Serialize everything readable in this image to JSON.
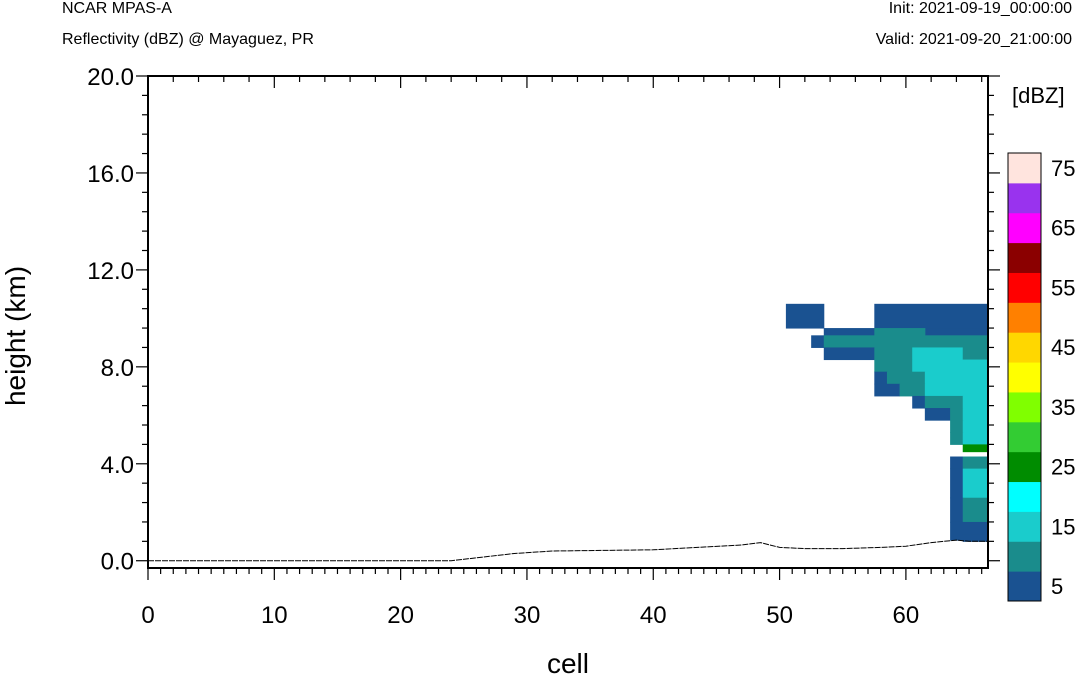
{
  "header": {
    "title": "NCAR MPAS-A",
    "subtitle": "Reflectivity (dBZ) @ Mayaguez, PR",
    "init": "Init: 2021-09-19_00:00:00",
    "valid": "Valid: 2021-09-20_21:00:00"
  },
  "chart_data": {
    "type": "heatmap",
    "xlabel": "cell",
    "ylabel": "height (km)",
    "xlim": [
      0,
      66.5
    ],
    "ylim": [
      -0.3,
      20.0
    ],
    "x_ticks": [
      "0",
      "10",
      "20",
      "30",
      "40",
      "50",
      "60"
    ],
    "y_ticks": [
      "0.0",
      "4.0",
      "8.0",
      "12.0",
      "16.0",
      "20.0"
    ],
    "colorbar": {
      "unit": "[dBZ]",
      "labels": [
        "5",
        "15",
        "25",
        "35",
        "45",
        "55",
        "65",
        "75"
      ],
      "colors": [
        "#1a5291",
        "#1a8c8c",
        "#1acccc",
        "#00ffff",
        "#008c00",
        "#33cc33",
        "#80ff00",
        "#ffff00",
        "#ffd700",
        "#ff8000",
        "#ff0000",
        "#8b0000",
        "#ff00ff",
        "#9933ee",
        "#ffe4de"
      ]
    },
    "terrain": {
      "x": [
        0,
        23,
        24,
        29,
        32,
        40,
        47,
        48.5,
        50,
        52,
        55,
        58,
        60,
        62,
        64,
        65,
        66.5
      ],
      "height_km": [
        0,
        0,
        0,
        0.3,
        0.4,
        0.45,
        0.65,
        0.75,
        0.55,
        0.5,
        0.5,
        0.55,
        0.6,
        0.75,
        0.85,
        0.8,
        0.8
      ]
    },
    "cells": [
      {
        "x0": 50.5,
        "x1": 53.5,
        "z0": 9.6,
        "z1": 10.6,
        "bin": 0
      },
      {
        "x0": 57.5,
        "x1": 66.5,
        "z0": 9.6,
        "z1": 10.6,
        "bin": 0
      },
      {
        "x0": 53.5,
        "x1": 57.5,
        "z0": 9.3,
        "z1": 9.6,
        "bin": 0
      },
      {
        "x0": 61.5,
        "x1": 66.5,
        "z0": 9.3,
        "z1": 9.6,
        "bin": 0
      },
      {
        "x0": 57.5,
        "x1": 61.5,
        "z0": 9.3,
        "z1": 9.6,
        "bin": 1
      },
      {
        "x0": 52.5,
        "x1": 53.5,
        "z0": 8.8,
        "z1": 9.3,
        "bin": 0
      },
      {
        "x0": 53.5,
        "x1": 66.5,
        "z0": 8.8,
        "z1": 9.3,
        "bin": 1
      },
      {
        "x0": 53.5,
        "x1": 57.5,
        "z0": 8.3,
        "z1": 8.8,
        "bin": 0
      },
      {
        "x0": 57.5,
        "x1": 60.5,
        "z0": 8.3,
        "z1": 8.8,
        "bin": 1
      },
      {
        "x0": 60.5,
        "x1": 64.5,
        "z0": 8.3,
        "z1": 8.8,
        "bin": 2
      },
      {
        "x0": 64.5,
        "x1": 66.5,
        "z0": 8.3,
        "z1": 8.8,
        "bin": 1
      },
      {
        "x0": 57.5,
        "x1": 60.5,
        "z0": 7.8,
        "z1": 8.3,
        "bin": 1
      },
      {
        "x0": 60.5,
        "x1": 66.5,
        "z0": 7.8,
        "z1": 8.3,
        "bin": 2
      },
      {
        "x0": 57.5,
        "x1": 58.5,
        "z0": 7.3,
        "z1": 7.8,
        "bin": 0
      },
      {
        "x0": 58.5,
        "x1": 61.5,
        "z0": 7.3,
        "z1": 7.8,
        "bin": 1
      },
      {
        "x0": 61.5,
        "x1": 66.5,
        "z0": 7.3,
        "z1": 7.8,
        "bin": 2
      },
      {
        "x0": 57.5,
        "x1": 59.5,
        "z0": 6.8,
        "z1": 7.3,
        "bin": 0
      },
      {
        "x0": 59.5,
        "x1": 61.5,
        "z0": 6.8,
        "z1": 7.3,
        "bin": 1
      },
      {
        "x0": 61.5,
        "x1": 66.5,
        "z0": 6.8,
        "z1": 7.3,
        "bin": 2
      },
      {
        "x0": 60.5,
        "x1": 61.5,
        "z0": 6.3,
        "z1": 6.8,
        "bin": 0
      },
      {
        "x0": 61.5,
        "x1": 64.5,
        "z0": 6.3,
        "z1": 6.8,
        "bin": 1
      },
      {
        "x0": 64.5,
        "x1": 66.5,
        "z0": 6.3,
        "z1": 6.8,
        "bin": 2
      },
      {
        "x0": 61.5,
        "x1": 63.5,
        "z0": 5.8,
        "z1": 6.3,
        "bin": 0
      },
      {
        "x0": 63.5,
        "x1": 64.5,
        "z0": 5.8,
        "z1": 6.3,
        "bin": 1
      },
      {
        "x0": 64.5,
        "x1": 66.5,
        "z0": 5.8,
        "z1": 6.3,
        "bin": 2
      },
      {
        "x0": 63.5,
        "x1": 64.5,
        "z0": 5.3,
        "z1": 5.8,
        "bin": 1
      },
      {
        "x0": 64.5,
        "x1": 66.5,
        "z0": 5.3,
        "z1": 5.8,
        "bin": 2
      },
      {
        "x0": 63.5,
        "x1": 64.5,
        "z0": 4.8,
        "z1": 5.3,
        "bin": 1
      },
      {
        "x0": 64.5,
        "x1": 66.5,
        "z0": 4.8,
        "z1": 5.3,
        "bin": 2
      },
      {
        "x0": 64.5,
        "x1": 66.5,
        "z0": 4.5,
        "z1": 4.8,
        "bin": 4
      },
      {
        "x0": 63.5,
        "x1": 64.5,
        "z0": 3.8,
        "z1": 4.3,
        "bin": 0
      },
      {
        "x0": 64.5,
        "x1": 66.5,
        "z0": 3.8,
        "z1": 4.3,
        "bin": 1
      },
      {
        "x0": 63.5,
        "x1": 64.5,
        "z0": 2.6,
        "z1": 3.8,
        "bin": 0
      },
      {
        "x0": 64.5,
        "x1": 66.5,
        "z0": 2.6,
        "z1": 3.8,
        "bin": 2
      },
      {
        "x0": 63.5,
        "x1": 64.5,
        "z0": 1.6,
        "z1": 2.6,
        "bin": 0
      },
      {
        "x0": 64.5,
        "x1": 66.5,
        "z0": 1.6,
        "z1": 2.6,
        "bin": 1
      },
      {
        "x0": 63.5,
        "x1": 64.5,
        "z0": 0.85,
        "z1": 1.6,
        "bin": 0
      },
      {
        "x0": 64.5,
        "x1": 66.5,
        "z0": 1.1,
        "z1": 1.6,
        "bin": 0
      },
      {
        "x0": 64.5,
        "x1": 66.5,
        "z0": 0.8,
        "z1": 1.1,
        "bin": 0
      }
    ]
  }
}
